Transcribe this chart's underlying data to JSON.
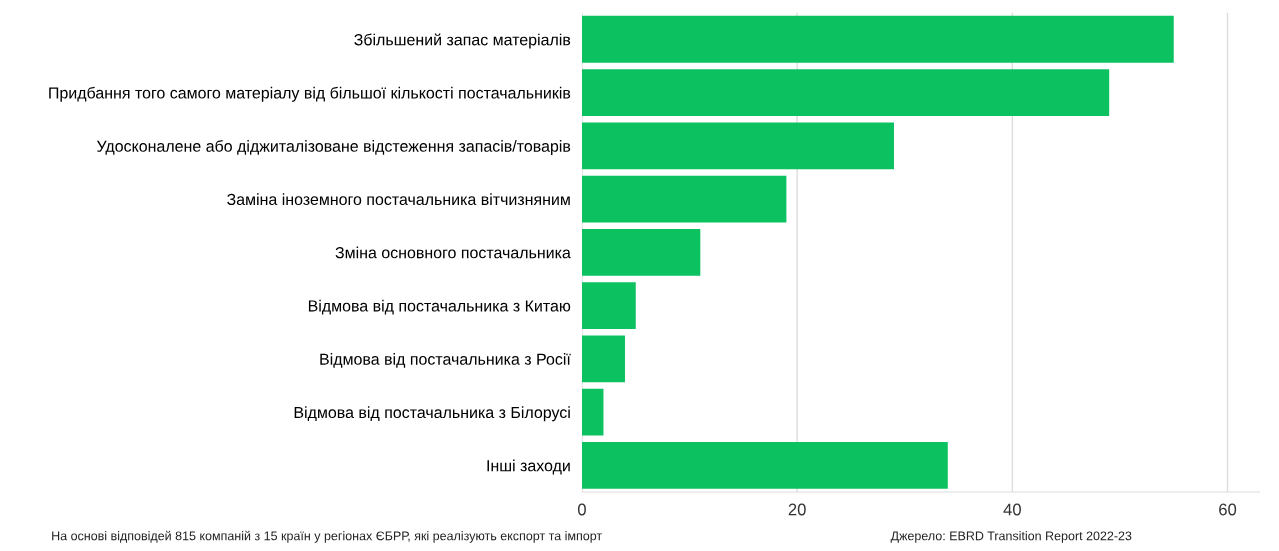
{
  "chart_data": {
    "type": "bar",
    "orientation": "horizontal",
    "categories": [
      "Збільшений запас матеріалів",
      "Придбання того самого матеріалу від більшої кількості постачальників",
      "Удосконалене або діджиталізоване відстеження запасів/товарів",
      "Заміна іноземного постачальника вітчизняним",
      "Зміна основного постачальника",
      "Відмова від постачальника з Китаю",
      "Відмова від постачальника з Росії",
      "Відмова від постачальника з Білорусі",
      "Інші заходи"
    ],
    "values": [
      55,
      49,
      29,
      19,
      11,
      5,
      4,
      2,
      34
    ],
    "color": "#0bc160",
    "xlim": [
      0,
      63
    ],
    "xticks": [
      0,
      20,
      40,
      60
    ],
    "grid": "x",
    "annotations": [
      "На основі відповідей 815 компаній з 15 країн у регіонах ЄБРР, які реалізують експорт та імпорт",
      "Джерело: EBRD Transition Report 2022-23"
    ]
  }
}
